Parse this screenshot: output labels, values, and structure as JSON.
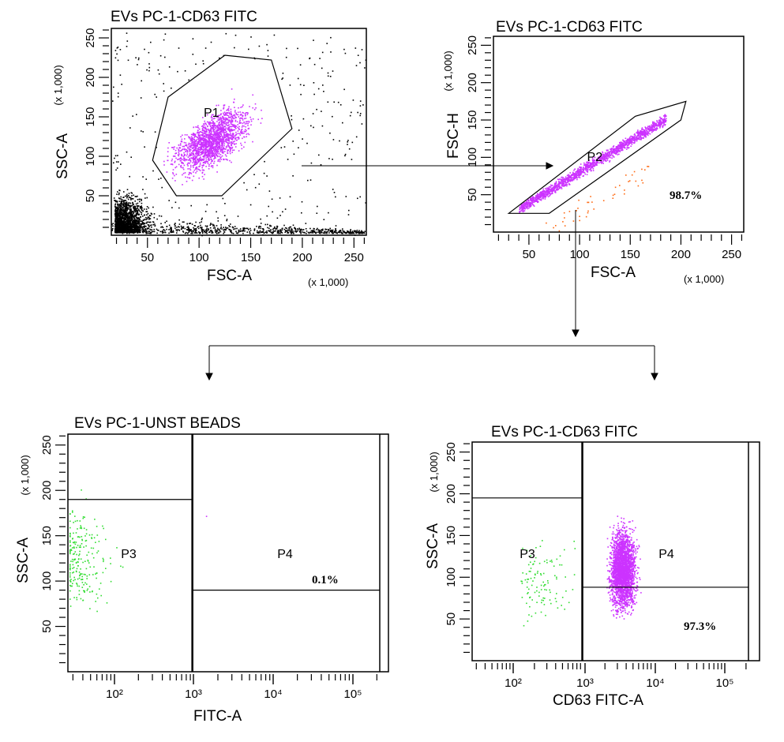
{
  "colors": {
    "gated_events": "#cc33ff",
    "ungated_events": "#000000",
    "p3_events": "#33dd33",
    "outside_p2_events": "#ff6a13",
    "percent_text": "#2b4a8a"
  },
  "chart_data": [
    {
      "id": "plot1",
      "type": "scatter",
      "title": "EVs PC-1-CD63 FITC",
      "xlabel": "FSC-A",
      "ylabel": "SSC-A",
      "x_multiplier": "(x 1,000)",
      "y_multiplier": "(x 1,000)",
      "xlim": [
        15,
        262
      ],
      "ylim": [
        0,
        262
      ],
      "x_ticks": [
        "50",
        "100",
        "150",
        "200",
        "250"
      ],
      "y_ticks": [
        "50",
        "100",
        "150",
        "200",
        "250"
      ],
      "gates": [
        {
          "name": "P1",
          "shape": "polygon",
          "vertices": [
            [
              55,
              95
            ],
            [
              70,
              175
            ],
            [
              125,
              228
            ],
            [
              170,
              222
            ],
            [
              190,
              135
            ],
            [
              122,
              50
            ],
            [
              78,
              50
            ]
          ]
        }
      ]
    },
    {
      "id": "plot2",
      "type": "scatter",
      "title": "EVs PC-1-CD63 FITC",
      "xlabel": "FSC-A",
      "ylabel": "FSC-H",
      "x_multiplier": "(x 1,000)",
      "y_multiplier": "(x 1,000)",
      "xlim": [
        15,
        262
      ],
      "ylim": [
        0,
        262
      ],
      "x_ticks": [
        "50",
        "100",
        "150",
        "200",
        "250"
      ],
      "y_ticks": [
        "50",
        "100",
        "150",
        "200",
        "250"
      ],
      "gates": [
        {
          "name": "P2",
          "shape": "polygon",
          "percent": "98.7%",
          "vertices": [
            [
              30,
              25
            ],
            [
              155,
              155
            ],
            [
              205,
              175
            ],
            [
              200,
              150
            ],
            [
              70,
              25
            ]
          ]
        }
      ]
    },
    {
      "id": "plot3",
      "type": "scatter",
      "title": "EVs PC-1-UNST BEADS",
      "xlabel": "FITC-A",
      "ylabel": "SSC-A",
      "x_scale": "log",
      "y_multiplier": "(x 1,000)",
      "xlim": [
        1.4,
        5.35
      ],
      "ylim": [
        0,
        262
      ],
      "x_ticks": [
        "10²",
        "10³",
        "10⁴",
        "10⁵"
      ],
      "y_ticks": [
        "50",
        "100",
        "150",
        "200",
        "250"
      ],
      "gates": [
        {
          "name": "P3",
          "shape": "rect",
          "x": [
            1.4,
            2.98
          ],
          "y": [
            0,
            190
          ]
        },
        {
          "name": "P4",
          "shape": "rect",
          "x": [
            2.98,
            5.35
          ],
          "y": [
            90,
            262
          ],
          "percent": "0.1%"
        }
      ]
    },
    {
      "id": "plot4",
      "type": "scatter",
      "title": "EVs PC-1-CD63 FITC",
      "xlabel": "CD63 FITC-A",
      "ylabel": "SSC-A",
      "x_scale": "log",
      "y_multiplier": "(x 1,000)",
      "xlim": [
        1.4,
        5.35
      ],
      "ylim": [
        0,
        262
      ],
      "x_ticks": [
        "10²",
        "10³",
        "10⁴",
        "10⁵"
      ],
      "y_ticks": [
        "50",
        "100",
        "150",
        "200",
        "250"
      ],
      "gates": [
        {
          "name": "P3",
          "shape": "rect",
          "x": [
            1.4,
            2.98
          ],
          "y": [
            0,
            195
          ]
        },
        {
          "name": "P4",
          "shape": "rect",
          "x": [
            2.98,
            5.35
          ],
          "y": [
            88,
            262
          ],
          "percent": "97.3%"
        }
      ]
    }
  ]
}
